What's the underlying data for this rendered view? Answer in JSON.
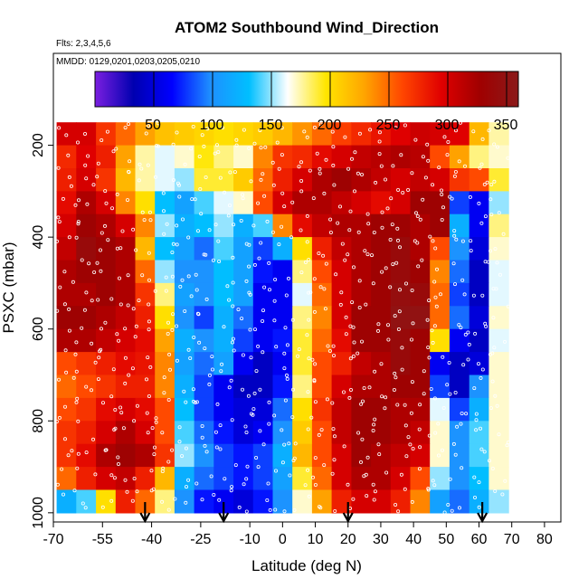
{
  "chart_data": {
    "type": "heatmap",
    "title": "ATOM2 Southbound Wind_Direction",
    "flights_label": "Flts: 2,3,4,5,6",
    "dates_label": "MMDD: 0129,0201,0203,0205,0210",
    "xlabel": "Latitude (deg N)",
    "ylabel": "PSXC (mbar)",
    "xlim": [
      -70,
      85
    ],
    "ylim": [
      1020,
      0
    ],
    "x_ticks": [
      -70,
      -55,
      -40,
      -25,
      -10,
      0,
      10,
      20,
      30,
      40,
      50,
      60,
      70,
      80
    ],
    "y_ticks": [
      200,
      400,
      600,
      800,
      1000
    ],
    "colorbar": {
      "range": [
        0,
        360
      ],
      "ticks": [
        50,
        100,
        150,
        200,
        250,
        300,
        350
      ],
      "colors": [
        "#7b1fe0",
        "#0000b0",
        "#0000ff",
        "#1e90ff",
        "#00bfff",
        "#ffffff",
        "#ffe600",
        "#ffa500",
        "#ff4500",
        "#e00000",
        "#a00000",
        "#8b1a1a"
      ]
    },
    "latitude_bins": [
      -66,
      -60,
      -54,
      -48,
      -42,
      -36,
      -30,
      -24,
      -18,
      -12,
      -6,
      0,
      6,
      12,
      18,
      24,
      30,
      36,
      42,
      48,
      54,
      60,
      66
    ],
    "pressure_levels": [
      175,
      225,
      275,
      325,
      375,
      425,
      475,
      525,
      575,
      625,
      675,
      725,
      775,
      825,
      875,
      925,
      975
    ],
    "wind_direction": [
      [
        300,
        300,
        270,
        250,
        230,
        215,
        210,
        205,
        200,
        205,
        210,
        220,
        235,
        250,
        265,
        275,
        285,
        295,
        305,
        300,
        295,
        220,
        175
      ],
      [
        275,
        295,
        280,
        230,
        175,
        160,
        170,
        195,
        180,
        170,
        240,
        270,
        275,
        290,
        300,
        310,
        315,
        320,
        315,
        260,
        230,
        180,
        170
      ],
      [
        280,
        300,
        270,
        220,
        175,
        160,
        150,
        190,
        190,
        210,
        250,
        280,
        300,
        320,
        330,
        320,
        310,
        300,
        310,
        300,
        270,
        260,
        190
      ],
      [
        290,
        320,
        300,
        240,
        200,
        130,
        110,
        140,
        160,
        170,
        260,
        300,
        320,
        320,
        310,
        300,
        290,
        300,
        330,
        330,
        80,
        60,
        150
      ],
      [
        300,
        330,
        320,
        300,
        240,
        150,
        120,
        130,
        150,
        120,
        140,
        240,
        290,
        310,
        320,
        320,
        330,
        330,
        320,
        330,
        120,
        60,
        180
      ],
      [
        310,
        340,
        330,
        320,
        220,
        130,
        110,
        90,
        140,
        110,
        80,
        120,
        200,
        280,
        310,
        320,
        330,
        340,
        320,
        260,
        100,
        50,
        170
      ],
      [
        320,
        330,
        330,
        320,
        250,
        150,
        100,
        100,
        130,
        110,
        70,
        60,
        180,
        260,
        300,
        320,
        330,
        340,
        330,
        240,
        90,
        40,
        160
      ],
      [
        320,
        320,
        330,
        320,
        270,
        180,
        110,
        100,
        130,
        110,
        60,
        60,
        160,
        250,
        300,
        320,
        330,
        345,
        340,
        250,
        80,
        40,
        160
      ],
      [
        330,
        330,
        320,
        310,
        280,
        200,
        100,
        80,
        120,
        90,
        60,
        60,
        180,
        240,
        300,
        330,
        330,
        350,
        350,
        250,
        90,
        50,
        170
      ],
      [
        320,
        320,
        310,
        300,
        290,
        230,
        120,
        100,
        120,
        80,
        60,
        70,
        190,
        250,
        290,
        330,
        330,
        340,
        330,
        200,
        60,
        40,
        160
      ],
      [
        260,
        270,
        280,
        290,
        285,
        240,
        110,
        90,
        110,
        60,
        40,
        60,
        190,
        260,
        280,
        310,
        320,
        340,
        330,
        60,
        40,
        50,
        170
      ],
      [
        250,
        260,
        270,
        280,
        280,
        240,
        120,
        80,
        60,
        40,
        40,
        70,
        180,
        260,
        300,
        320,
        320,
        330,
        330,
        80,
        40,
        100,
        170
      ],
      [
        260,
        270,
        290,
        300,
        290,
        260,
        130,
        80,
        60,
        50,
        50,
        90,
        200,
        270,
        310,
        330,
        330,
        320,
        320,
        160,
        80,
        120,
        170
      ],
      [
        270,
        280,
        300,
        320,
        300,
        260,
        140,
        90,
        70,
        50,
        60,
        100,
        210,
        260,
        310,
        330,
        330,
        320,
        310,
        170,
        100,
        140,
        170
      ],
      [
        270,
        290,
        320,
        330,
        320,
        270,
        150,
        100,
        80,
        70,
        80,
        120,
        220,
        260,
        300,
        330,
        320,
        310,
        300,
        170,
        100,
        140,
        170
      ],
      [
        250,
        280,
        300,
        310,
        280,
        220,
        120,
        90,
        80,
        70,
        80,
        110,
        190,
        250,
        300,
        320,
        320,
        300,
        260,
        150,
        100,
        130,
        170
      ],
      [
        120,
        140,
        200,
        280,
        250,
        180,
        100,
        70,
        60,
        50,
        70,
        100,
        170,
        230,
        280,
        300,
        300,
        280,
        240,
        110,
        90,
        120,
        150
      ]
    ],
    "arrow_latitudes": [
      -42,
      -18,
      20,
      61
    ]
  }
}
